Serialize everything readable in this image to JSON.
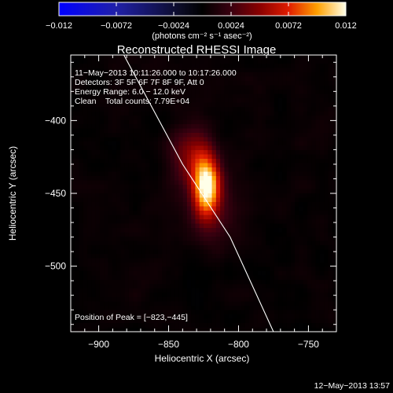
{
  "chart_data": {
    "type": "heatmap",
    "title": "Reconstructed RHESSI Image",
    "xlabel": "Heliocentric X (arcsec)",
    "ylabel": "Heliocentric Y (arcsec)",
    "xlim": [
      -920,
      -730
    ],
    "ylim": [
      -545,
      -355
    ],
    "xticks": [
      {
        "value": -900,
        "label": "−900"
      },
      {
        "value": -850,
        "label": "−850"
      },
      {
        "value": -800,
        "label": "−800"
      },
      {
        "value": -750,
        "label": "−750"
      }
    ],
    "yticks": [
      {
        "value": -400,
        "label": "−400"
      },
      {
        "value": -450,
        "label": "−450"
      },
      {
        "value": -500,
        "label": "−500"
      }
    ],
    "colorbar": {
      "range": [
        -0.012,
        0.012
      ],
      "ticks": [
        {
          "value": -0.012,
          "label": "−0.012"
        },
        {
          "value": -0.0072,
          "label": "−0.0072"
        },
        {
          "value": -0.0024,
          "label": "−0.0024"
        },
        {
          "value": 0.0024,
          "label": "0.0024"
        },
        {
          "value": 0.0072,
          "label": "0.0072"
        },
        {
          "value": 0.012,
          "label": "0.012"
        }
      ],
      "units_label": "(photons cm⁻² s⁻¹ asec⁻²)"
    },
    "annotations": [
      "11−May−2013 10:11:26.000 to 10:17:26.000",
      "Detectors: 3F 5F 6F 7F 8F 9F, Att 0",
      "Energy Range: 6.0 − 12.0 keV",
      "Clean    Total counts: 7.79E+04"
    ],
    "peak_label": "Position of Peak = [−823,−445]",
    "peak": [
      -823,
      -445
    ],
    "limb_points": [
      [
        -882,
        -355
      ],
      [
        -840,
        -430
      ],
      [
        -806,
        -480
      ],
      [
        -775,
        -545
      ]
    ],
    "sources": [
      {
        "x": -823,
        "y": -445,
        "sx": 7,
        "sy": 15,
        "amp": 0.012
      },
      {
        "x": -835,
        "y": -425,
        "sx": 10,
        "sy": 14,
        "amp": 0.004
      },
      {
        "x": -815,
        "y": -468,
        "sx": 12,
        "sy": 16,
        "amp": 0.0015
      }
    ]
  },
  "footer": {
    "timestamp": "12−May−2013 13:57"
  }
}
